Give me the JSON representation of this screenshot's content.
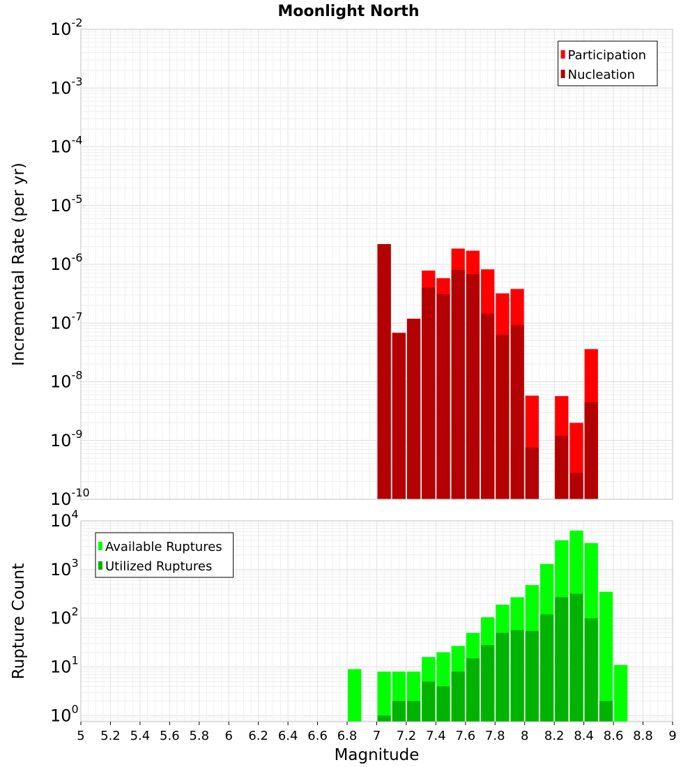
{
  "title": "Moonlight North",
  "chart_data": [
    {
      "type": "bar",
      "ylabel": "Incremental Rate (per yr)",
      "yscale": "log",
      "ylim": [
        1e-10,
        0.01
      ],
      "xlim": [
        5,
        9
      ],
      "ytick_exponents": [
        "-10",
        "-9",
        "-8",
        "-7",
        "-6",
        "-5",
        "-4",
        "-3",
        "-2"
      ],
      "legend_position": "top-right",
      "bar_width": 0.1,
      "x": [
        7.05,
        7.15,
        7.25,
        7.35,
        7.45,
        7.55,
        7.65,
        7.75,
        7.85,
        7.95,
        8.05,
        8.25,
        8.35,
        8.45
      ],
      "series": [
        {
          "name": "Participation",
          "color": "#ff0000",
          "values": [
            2.2e-06,
            6.8e-08,
            1.18e-07,
            7.8e-07,
            5.8e-07,
            1.85e-06,
            1.7e-06,
            8.2e-07,
            3.2e-07,
            3.8e-07,
            5.8e-09,
            5.7e-09,
            2e-09,
            3.6e-08
          ]
        },
        {
          "name": "Nucleation",
          "color": "#b30000",
          "values": [
            2.2e-06,
            6.8e-08,
            1.18e-07,
            4e-07,
            3.1e-07,
            8e-07,
            6.8e-07,
            1.45e-07,
            6.3e-08,
            9.2e-08,
            7.6e-10,
            1.2e-09,
            2.8e-10,
            4.5e-09
          ]
        }
      ]
    },
    {
      "type": "bar",
      "xlabel": "Magnitude",
      "ylabel": "Rupture Count",
      "yscale": "log",
      "ylim": [
        0.75,
        10000
      ],
      "xlim": [
        5,
        9
      ],
      "ytick_exponents": [
        "0",
        "1",
        "2",
        "3",
        "4"
      ],
      "xticks": [
        "5",
        "5.2",
        "5.4",
        "5.6",
        "5.8",
        "6",
        "6.2",
        "6.4",
        "6.6",
        "6.8",
        "7",
        "7.2",
        "7.4",
        "7.6",
        "7.8",
        "8",
        "8.2",
        "8.4",
        "8.6",
        "8.8",
        "9"
      ],
      "legend_position": "top-left",
      "bar_width": 0.1,
      "x": [
        6.85,
        7.05,
        7.15,
        7.25,
        7.35,
        7.45,
        7.55,
        7.65,
        7.75,
        7.85,
        7.95,
        8.05,
        8.15,
        8.25,
        8.35,
        8.45,
        8.55,
        8.65
      ],
      "series": [
        {
          "name": "Available Ruptures",
          "color": "#00ff00",
          "values": [
            9,
            8,
            8,
            8,
            16,
            20,
            27,
            50,
            105,
            190,
            270,
            480,
            1300,
            4000,
            6300,
            3500,
            350,
            11
          ]
        },
        {
          "name": "Utilized Ruptures",
          "color": "#00b300",
          "values": [
            0,
            1,
            2,
            2,
            5,
            4,
            8,
            15,
            28,
            50,
            57,
            55,
            120,
            270,
            320,
            100,
            2,
            0
          ]
        }
      ]
    }
  ]
}
